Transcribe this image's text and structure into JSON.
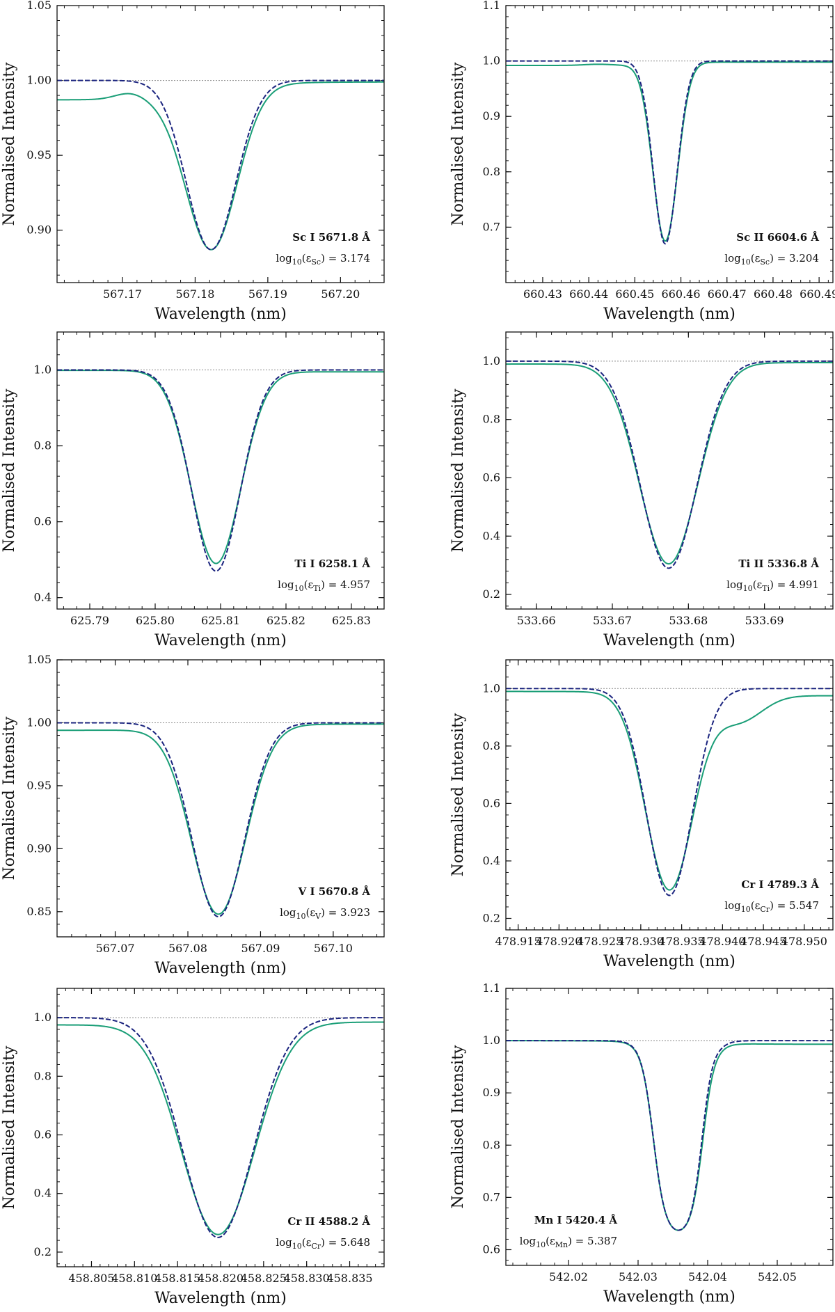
{
  "figure": {
    "colors": {
      "observed": "#1a9e77",
      "model": "#1a237e",
      "continuum": "#888888"
    }
  },
  "chart_data": [
    {
      "type": "line",
      "xlabel": "Wavelength (nm)",
      "ylabel": "Normalised Intensity",
      "xlim": [
        567.161,
        567.206
      ],
      "ylim": [
        0.865,
        1.05
      ],
      "xticks": [
        567.17,
        567.18,
        567.19,
        567.2
      ],
      "xtick_decimals": 2,
      "yticks": [
        0.9,
        0.95,
        1.0,
        1.05
      ],
      "ytick_decimals": 2,
      "line_label": "Sc I  5671.8 Å",
      "abundance_label": "log10(εSc) = 3.174",
      "line": {
        "center": 567.1822,
        "sigma": 0.0034,
        "model_depth": 0.113,
        "obs_depth": 0.113,
        "obs_left_cont": 0.987,
        "obs_right_cont": 0.999,
        "blend_bump": [
          567.171,
          0.004,
          0.002
        ]
      }
    },
    {
      "type": "line",
      "xlabel": "Wavelength (nm)",
      "ylabel": "Normalised Intensity",
      "xlim": [
        660.422,
        660.493
      ],
      "ylim": [
        0.6,
        1.1
      ],
      "xticks": [
        660.43,
        660.44,
        660.45,
        660.46,
        660.47,
        660.48,
        660.49
      ],
      "xtick_decimals": 2,
      "yticks": [
        0.7,
        0.8,
        0.9,
        1.0,
        1.1
      ],
      "ytick_decimals": 1,
      "line_label": "Sc II  6604.6 Å",
      "abundance_label": "log10(εSc) = 3.204",
      "line": {
        "center": 660.4566,
        "sigma": 0.0026,
        "model_depth": 0.33,
        "obs_depth": 0.325,
        "obs_left_cont": 0.992,
        "obs_right_cont": 0.998,
        "blend_bump": [
          660.442,
          0.002,
          0.003
        ]
      }
    },
    {
      "type": "line",
      "xlabel": "Wavelength (nm)",
      "ylabel": "Normalised Intensity",
      "xlim": [
        625.785,
        625.835
      ],
      "ylim": [
        0.37,
        1.1
      ],
      "xticks": [
        625.79,
        625.8,
        625.81,
        625.82,
        625.83
      ],
      "xtick_decimals": 2,
      "yticks": [
        0.4,
        0.6,
        0.8,
        1.0
      ],
      "ytick_decimals": 1,
      "line_label": "Ti I  6258.1 Å",
      "abundance_label": "log10(εTi) = 4.957",
      "line": {
        "center": 625.8093,
        "sigma": 0.0037,
        "model_depth": 0.53,
        "obs_depth": 0.51,
        "obs_left_cont": 0.999,
        "obs_right_cont": 0.995,
        "blend_bump": [
          625.8,
          0.0,
          0.003
        ]
      }
    },
    {
      "type": "line",
      "xlabel": "Wavelength (nm)",
      "ylabel": "Normalised Intensity",
      "xlim": [
        533.656,
        533.699
      ],
      "ylim": [
        0.15,
        1.1
      ],
      "xticks": [
        533.66,
        533.67,
        533.68,
        533.69
      ],
      "xtick_decimals": 2,
      "yticks": [
        0.2,
        0.4,
        0.6,
        0.8,
        1.0
      ],
      "ytick_decimals": 1,
      "line_label": "Ti II  5336.8 Å",
      "abundance_label": "log10(εTi) = 4.991",
      "line": {
        "center": 533.6774,
        "sigma": 0.0037,
        "model_depth": 0.71,
        "obs_depth": 0.695,
        "obs_left_cont": 0.99,
        "obs_right_cont": 0.995,
        "blend_bump": [
          533.66,
          0.0,
          0.003
        ]
      }
    },
    {
      "type": "line",
      "xlabel": "Wavelength (nm)",
      "ylabel": "Normalised Intensity",
      "xlim": [
        567.062,
        567.107
      ],
      "ylim": [
        0.83,
        1.05
      ],
      "xticks": [
        567.07,
        567.08,
        567.09,
        567.1
      ],
      "xtick_decimals": 2,
      "yticks": [
        0.85,
        0.9,
        0.95,
        1.0,
        1.05
      ],
      "ytick_decimals": 2,
      "line_label": "V I  5670.8 Å",
      "abundance_label": "log10(εV) = 3.923",
      "line": {
        "center": 567.0842,
        "sigma": 0.0036,
        "model_depth": 0.154,
        "obs_depth": 0.152,
        "obs_left_cont": 0.994,
        "obs_right_cont": 0.999,
        "blend_bump": [
          567.07,
          0.0,
          0.003
        ]
      }
    },
    {
      "type": "line",
      "xlabel": "Wavelength (nm)",
      "ylabel": "Normalised Intensity",
      "xlim": [
        478.9135,
        478.9535
      ],
      "ylim": [
        0.16,
        1.1
      ],
      "xticks": [
        478.915,
        478.92,
        478.925,
        478.93,
        478.935,
        478.94,
        478.945,
        478.95
      ],
      "xtick_decimals": 3,
      "yticks": [
        0.2,
        0.4,
        0.6,
        0.8,
        1.0
      ],
      "ytick_decimals": 1,
      "line_label": "Cr I  4789.3 Å",
      "abundance_label": "log10(εCr) = 5.547",
      "line": {
        "center": 478.9335,
        "sigma": 0.0028,
        "model_depth": 0.72,
        "obs_depth": 0.7,
        "obs_left_cont": 0.99,
        "obs_right_cont": 0.975,
        "blend_bump": [
          478.942,
          -0.09,
          0.0028
        ]
      }
    },
    {
      "type": "line",
      "xlabel": "Wavelength (nm)",
      "ylabel": "Normalised Intensity",
      "xlim": [
        458.801,
        458.839
      ],
      "ylim": [
        0.15,
        1.1
      ],
      "xticks": [
        458.805,
        458.81,
        458.815,
        458.82,
        458.825,
        458.83,
        458.835
      ],
      "xtick_decimals": 3,
      "yticks": [
        0.2,
        0.4,
        0.6,
        0.8,
        1.0
      ],
      "ytick_decimals": 1,
      "line_label": "Cr II  4588.2 Å",
      "abundance_label": "log10(εCr) = 5.648",
      "line": {
        "center": 458.8197,
        "sigma": 0.0041,
        "model_depth": 0.75,
        "obs_depth": 0.74,
        "obs_left_cont": 0.975,
        "obs_right_cont": 0.985,
        "blend_bump": [
          458.81,
          0.0,
          0.003
        ]
      }
    },
    {
      "type": "line",
      "xlabel": "Wavelength (nm)",
      "ylabel": "Normalised Intensity",
      "xlim": [
        542.011,
        542.058
      ],
      "ylim": [
        0.57,
        1.1
      ],
      "xticks": [
        542.02,
        542.03,
        542.04,
        542.05
      ],
      "xtick_decimals": 2,
      "yticks": [
        0.6,
        0.7,
        0.8,
        0.9,
        1.0,
        1.1
      ],
      "ytick_decimals": 1,
      "line_label": "Mn I  5420.4 Å",
      "abundance_label": "log10(εMn) = 5.387",
      "line": {
        "center": 542.0358,
        "sigma": 0.004,
        "model_depth": 0.375,
        "obs_depth": 0.375,
        "obs_left_cont": 1.0,
        "obs_right_cont": 0.993,
        "blend_bump": [
          542.04,
          0.0,
          0.003
        ],
        "flat_halfwidth": 0.0036,
        "model_bump": [
          542.0398,
          0.025,
          0.0011
        ],
        "obs_bump": [
          542.0398,
          0.01,
          0.0011
        ]
      }
    }
  ]
}
